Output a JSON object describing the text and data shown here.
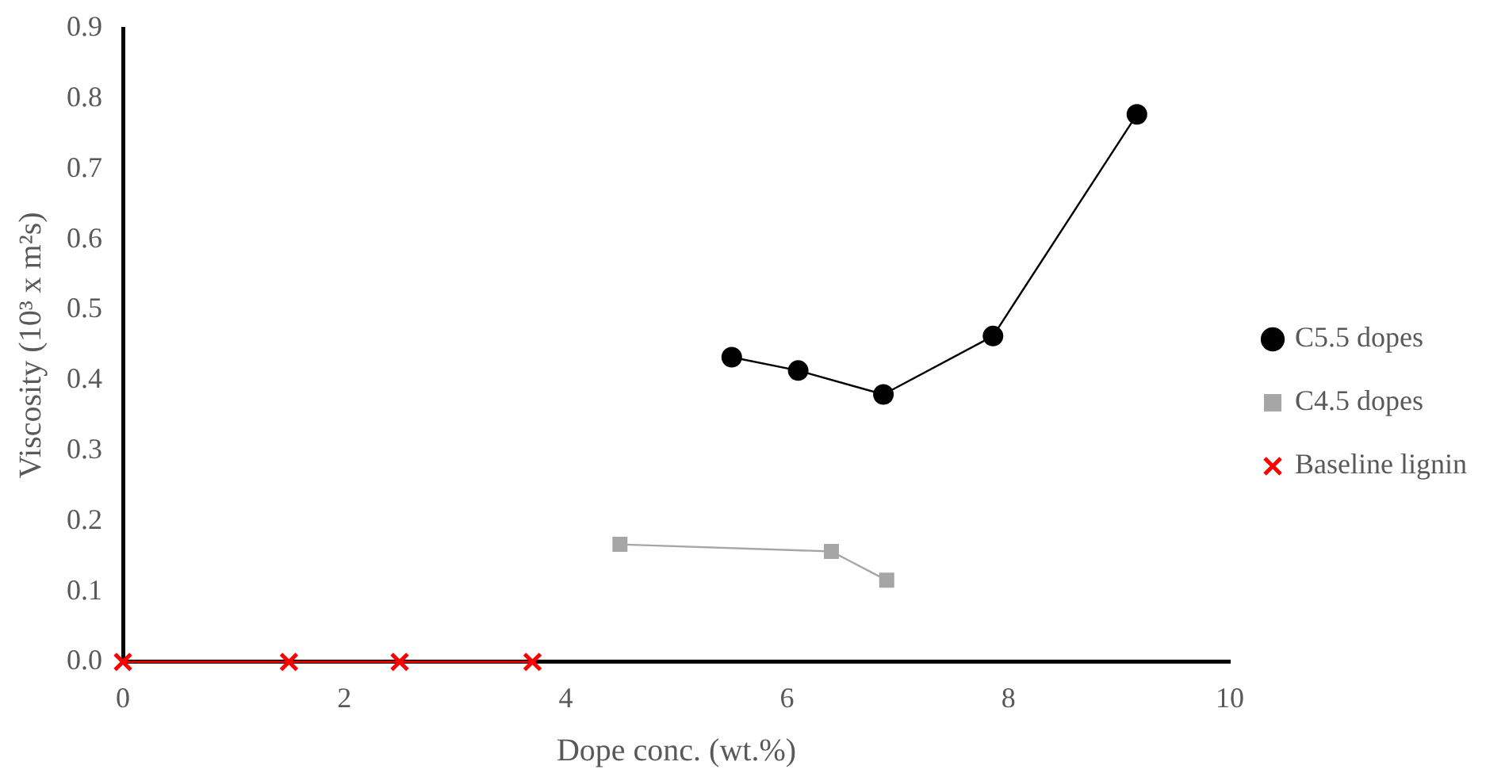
{
  "chart_data": {
    "type": "line",
    "xlabel": "Dope conc. (wt.%)",
    "ylabel": "Viscosity (10³ x m²s)",
    "xlim": [
      0,
      10
    ],
    "xticks": [
      0,
      2,
      4,
      6,
      8,
      10
    ],
    "ylim": [
      0,
      0.9
    ],
    "yticks": [
      {
        "value": 0,
        "label": "0.0"
      },
      0.1,
      0.2,
      0.3,
      0.4,
      0.5,
      0.6,
      0.7,
      0.8,
      0.9
    ],
    "grid": false,
    "legend": "right",
    "line_style": "solid",
    "series": [
      {
        "name": "C5.5 dopes",
        "color": "#000000",
        "marker": "circle",
        "x": [
          5.5,
          6.1,
          6.87,
          7.86,
          9.16
        ],
        "values": [
          0.433,
          0.414,
          0.38,
          0.463,
          0.778
        ]
      },
      {
        "name": "C4.5 dopes",
        "color": "#a6a6a6",
        "marker": "square",
        "x": [
          4.49,
          6.4,
          6.9
        ],
        "values": [
          0.167,
          0.157,
          0.116
        ]
      },
      {
        "name": "Baseline lignin",
        "color": "#ff0000",
        "marker": "cross",
        "x": [
          0,
          1.5,
          2.5,
          3.7
        ],
        "values": [
          0,
          0,
          0,
          0
        ]
      }
    ]
  }
}
